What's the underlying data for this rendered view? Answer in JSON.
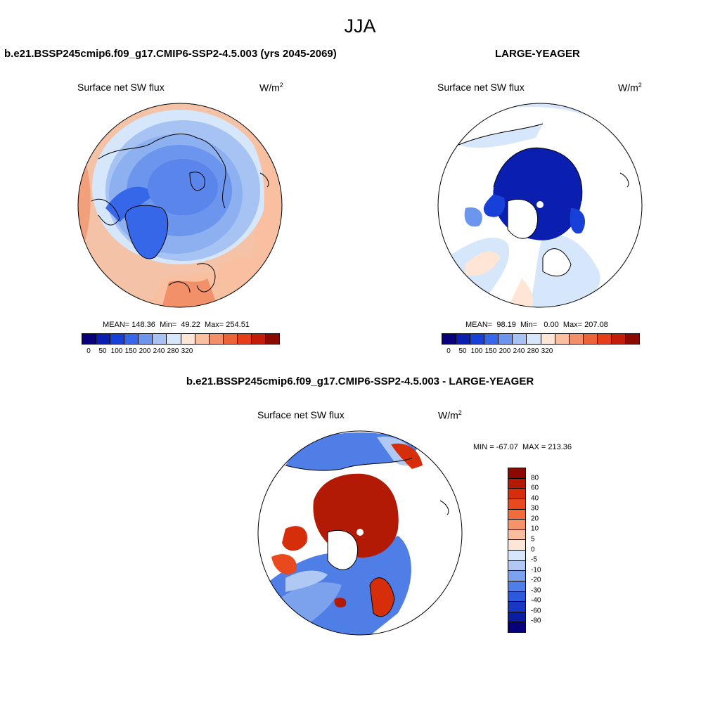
{
  "main_title": "JJA",
  "panels": [
    {
      "case_title": "b.e21.BSSP245cmip6.f09_g17.CMIP6-SSP2-4.5.003 (yrs 2045-2069)",
      "variable": "Surface net SW flux",
      "units": "W/m",
      "units_sup": "2",
      "mean_label": "MEAN=",
      "mean": "148.36",
      "min_label": "Min=",
      "min": "49.22",
      "max_label": "Max=",
      "max": "254.51",
      "colorbar_ticks": [
        "0",
        "50",
        "100",
        "150",
        "200",
        "240",
        "280",
        "320"
      ]
    },
    {
      "case_title": "LARGE-YEAGER",
      "variable": "Surface net SW flux",
      "units": "W/m",
      "units_sup": "2",
      "mean_label": "MEAN=",
      "mean": "98.19",
      "min_label": "Min=",
      "min": "0.00",
      "max_label": "Max=",
      "max": "207.08",
      "colorbar_ticks": [
        "0",
        "50",
        "100",
        "150",
        "200",
        "240",
        "280",
        "320"
      ]
    },
    {
      "case_title": "b.e21.BSSP245cmip6.f09_g17.CMIP6-SSP2-4.5.003 - LARGE-YEAGER",
      "variable": "Surface net SW flux",
      "units": "W/m",
      "units_sup": "2",
      "minmax": "MIN = -67.07  MAX = 213.36",
      "colorbar_ticks": [
        "80",
        "60",
        "40",
        "30",
        "20",
        "10",
        "5",
        "0",
        "-5",
        "-10",
        "-20",
        "-30",
        "-40",
        "-60",
        "-80"
      ]
    }
  ],
  "colors": {
    "abs_scale": [
      "#08007a",
      "#0a1fb0",
      "#1740d8",
      "#3567e8",
      "#6c95ee",
      "#a6c3f3",
      "#d6e6fb",
      "#fde6d6",
      "#f8bfa1",
      "#f19069",
      "#ea6339",
      "#e33d1a",
      "#c21d08",
      "#8a0a00"
    ],
    "diff_scale": [
      "#8a0a00",
      "#b21a05",
      "#d62e0a",
      "#e84a1e",
      "#f06c3a",
      "#f5936a",
      "#f9bea0",
      "#fde6d6",
      "#d6e6fb",
      "#b0c9f4",
      "#7ca2ee",
      "#4f7ee6",
      "#2c58dc",
      "#1737c4",
      "#0a1fa0",
      "#08007a"
    ]
  }
}
